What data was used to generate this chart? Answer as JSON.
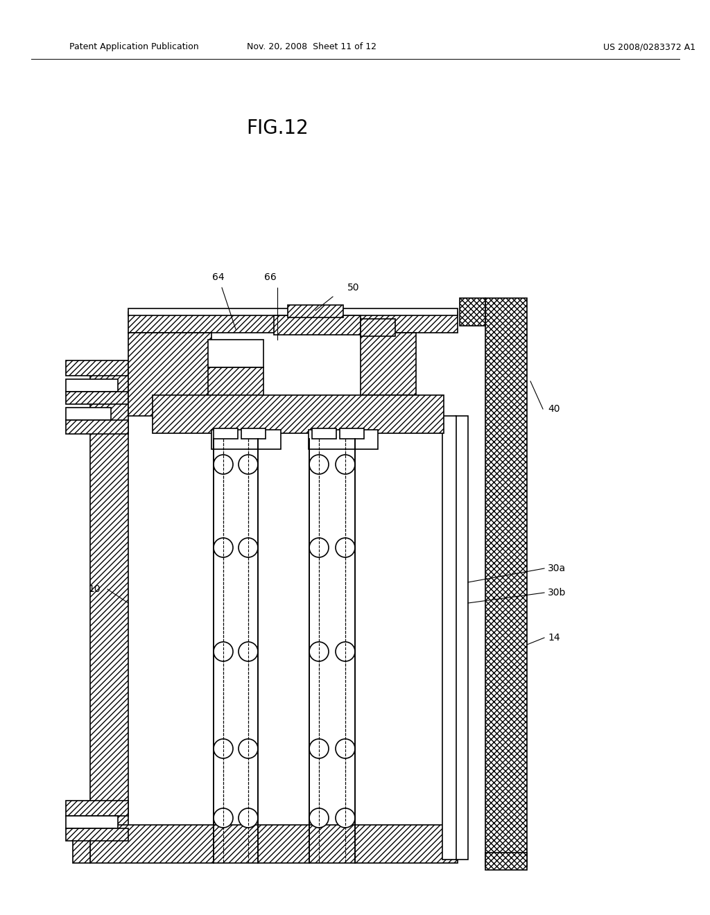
{
  "background_color": "#ffffff",
  "title": "FIG.12",
  "header_left": "Patent Application Publication",
  "header_mid": "Nov. 20, 2008  Sheet 11 of 12",
  "header_right": "US 2008/0283372 A1",
  "lw_thin": 0.8,
  "lw_med": 1.2,
  "lw_thick": 1.8,
  "label_fontsize": 10,
  "title_fontsize": 20
}
